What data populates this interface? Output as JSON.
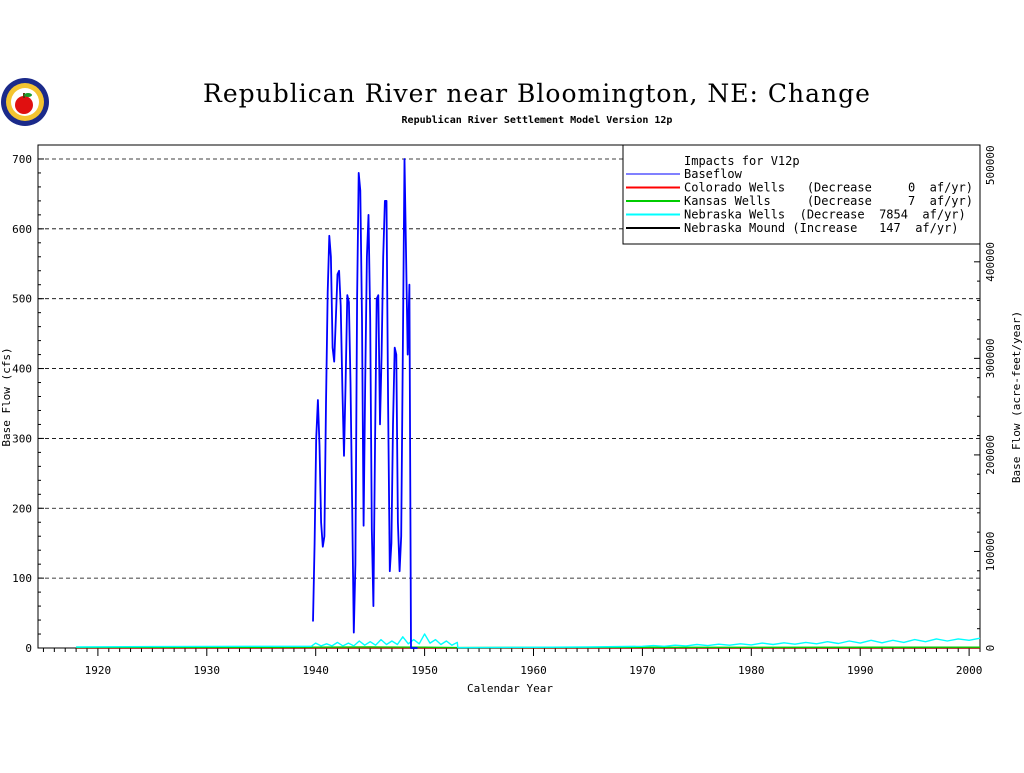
{
  "chart_data": {
    "type": "line",
    "title": "Republican River near Bloomington, NE: Change",
    "subtitle": "Republican River Settlement Model Version 12p",
    "xlabel": "Calendar Year",
    "ylabel_left": "Base Flow (cfs)",
    "ylabel_right": "Base Flow (acre-feet/year)",
    "xlim": [
      1914.5,
      2001
    ],
    "ylim_left": [
      0,
      720
    ],
    "ylim_right": [
      0,
      521000
    ],
    "x_ticks": [
      "1920",
      "1930",
      "1940",
      "1950",
      "1960",
      "1970",
      "1980",
      "1990",
      "2000"
    ],
    "y_ticks_left": [
      "0",
      "100",
      "200",
      "300",
      "400",
      "500",
      "600",
      "700"
    ],
    "y_ticks_right": [
      "0",
      "100000",
      "200000",
      "300000",
      "400000",
      "500000"
    ],
    "grid": "horizontal dashed",
    "legend_position": "top-right",
    "legend_title": "Impacts for V12p",
    "legend": [
      {
        "label": "Baseflow",
        "color": "#0000ff"
      },
      {
        "label": "Colorado Wells   (Decrease     0  af/yr)",
        "color": "#ff0000"
      },
      {
        "label": "Kansas Wells     (Decrease     7  af/yr)",
        "color": "#00cc00"
      },
      {
        "label": "Nebraska Wells  (Decrease  7854  af/yr)",
        "color": "#00ffff"
      },
      {
        "label": "Nebraska Mound (Increase   147  af/yr)",
        "color": "#000000"
      }
    ],
    "series": [
      {
        "name": "Baseflow",
        "color": "#0000ff",
        "x": [
          1939.75,
          1939.9,
          1940.05,
          1940.2,
          1940.35,
          1940.5,
          1940.65,
          1940.8,
          1940.95,
          1941.1,
          1941.25,
          1941.4,
          1941.55,
          1941.7,
          1941.85,
          1942.0,
          1942.15,
          1942.3,
          1942.45,
          1942.6,
          1942.75,
          1942.9,
          1943.05,
          1943.2,
          1943.35,
          1943.5,
          1943.65,
          1943.8,
          1943.95,
          1944.1,
          1944.25,
          1944.4,
          1944.55,
          1944.7,
          1944.85,
          1945.0,
          1945.15,
          1945.3,
          1945.45,
          1945.6,
          1945.75,
          1945.9,
          1946.05,
          1946.2,
          1946.35,
          1946.5,
          1946.65,
          1946.8,
          1946.95,
          1947.1,
          1947.25,
          1947.4,
          1947.55,
          1947.7,
          1947.85,
          1948.0,
          1948.15,
          1948.3,
          1948.45,
          1948.6,
          1948.75,
          1948.9,
          1949.05,
          1949.2,
          1949.35,
          1949.5
        ],
        "values": [
          38,
          150,
          300,
          355,
          290,
          180,
          145,
          160,
          350,
          510,
          590,
          560,
          430,
          410,
          470,
          535,
          540,
          490,
          370,
          275,
          380,
          505,
          495,
          380,
          200,
          22,
          120,
          500,
          680,
          655,
          470,
          175,
          380,
          560,
          620,
          470,
          170,
          60,
          300,
          500,
          505,
          320,
          420,
          560,
          640,
          640,
          350,
          110,
          150,
          320,
          430,
          420,
          180,
          110,
          160,
          420,
          700,
          560,
          420,
          520,
          0,
          0,
          0,
          0,
          0,
          0
        ]
      },
      {
        "name": "Colorado Wells   (Decrease     0  af/yr)",
        "color": "#ff0000",
        "x": [
          1918,
          2001
        ],
        "values": [
          0.3,
          0.3
        ]
      },
      {
        "name": "Kansas Wells     (Decrease     7  af/yr)",
        "color": "#00cc00",
        "x": [
          1918,
          1930,
          1940,
          1945,
          1950,
          1953,
          1960,
          1980,
          2001
        ],
        "values": [
          0.8,
          1,
          1.2,
          1.5,
          1.2,
          0.6,
          0.8,
          1,
          1.2
        ]
      },
      {
        "name": "Nebraska Wells  (Decrease  7854  af/yr)",
        "color": "#00ffff",
        "x": [
          1918,
          1925,
          1935,
          1939.6,
          1940,
          1940.5,
          1941,
          1941.5,
          1942,
          1942.5,
          1943,
          1943.5,
          1944,
          1944.5,
          1945,
          1945.5,
          1946,
          1946.5,
          1947,
          1947.5,
          1948,
          1948.5,
          1949,
          1949.5,
          1950,
          1950.5,
          1951,
          1951.5,
          1952,
          1952.5,
          1953,
          1953.05,
          1960,
          1965,
          1970,
          1971,
          1972,
          1973,
          1974,
          1975,
          1976,
          1977,
          1978,
          1979,
          1980,
          1981,
          1982,
          1983,
          1984,
          1985,
          1986,
          1987,
          1988,
          1989,
          1990,
          1991,
          1992,
          1993,
          1994,
          1995,
          1996,
          1997,
          1998,
          1999,
          2000,
          2001
        ],
        "values": [
          1.5,
          2,
          2.5,
          2.5,
          7,
          3,
          6,
          3,
          8,
          3,
          7,
          3,
          10,
          4,
          9,
          4,
          12,
          5,
          10,
          5,
          16,
          6,
          12,
          6,
          20,
          7,
          12,
          5,
          10,
          4,
          8,
          0.5,
          1,
          1.5,
          2.5,
          3.5,
          2.5,
          4,
          3,
          5,
          3.5,
          5.5,
          4,
          6,
          4.5,
          7,
          5,
          7.5,
          5.5,
          8,
          6,
          9,
          6.5,
          10,
          7,
          11,
          7.5,
          11,
          8,
          12,
          9,
          13,
          10,
          13,
          11,
          14
        ]
      },
      {
        "name": "Nebraska Mound (Increase   147  af/yr)",
        "color": "#000000",
        "x": [
          1918,
          2001
        ],
        "values": [
          0,
          0
        ]
      }
    ]
  }
}
